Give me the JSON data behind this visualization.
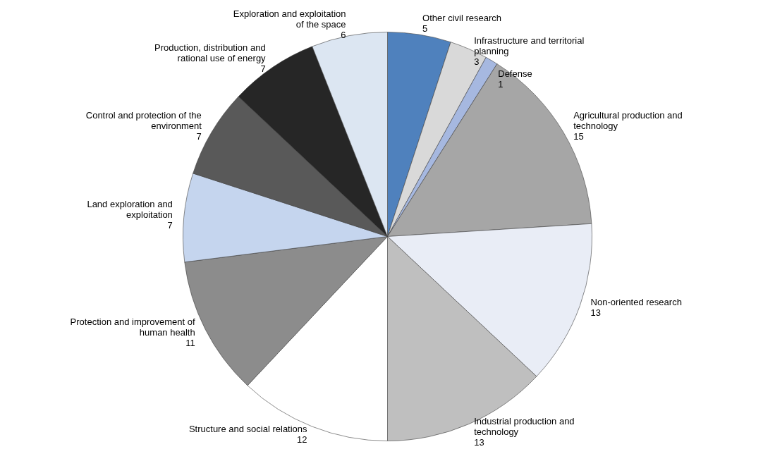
{
  "chart_data": {
    "type": "pie",
    "categories": [
      "Other civil research",
      "Infrastructure and territorial planning",
      "Defense",
      "Agricultural production and technology",
      "Non-oriented research",
      "Industrial production and technology",
      "Structure and social relations",
      "Protection and improvement of human health",
      "Land exploration and exploitation",
      "Control and protection of the environment",
      "Production, distribution and rational use of energy",
      "Exploration and exploitation of the space"
    ],
    "values": [
      5,
      3,
      1,
      15,
      13,
      13,
      12,
      11,
      7,
      7,
      7,
      6
    ],
    "colors": [
      "#4f81bd",
      "#d9d9d9",
      "#a6b8e0",
      "#a6a6a6",
      "#e9edf6",
      "#bfbfbf",
      "#ffffff",
      "#8c8c8c",
      "#c5d5ee",
      "#595959",
      "#262626",
      "#dce6f2"
    ],
    "data_labels": true
  }
}
